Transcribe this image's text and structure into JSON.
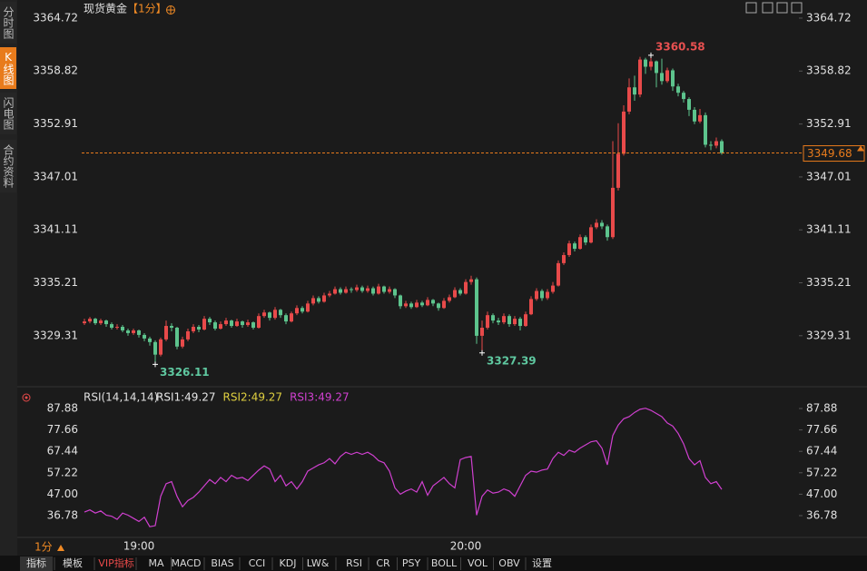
{
  "title": "现货黄金",
  "period": "【1分】",
  "sidebar_tabs": [
    "分时图",
    "K线图",
    "闪电图",
    "合约资料"
  ],
  "period_selector": "1分",
  "toolbar_tabs": [
    "指标",
    "模板",
    "VIP指标",
    "MA",
    "MACD",
    "BIAS",
    "CCI",
    "KDJ",
    "LW&",
    "RSI",
    "CR",
    "PSY",
    "BOLL",
    "VOL",
    "OBV",
    "设置"
  ],
  "chart_data": [
    {
      "type": "candlestick",
      "up_color": "#e84a4a",
      "down_color": "#5dc48d",
      "last_price": 3349.68,
      "ylim": [
        3324.23,
        3365.93
      ],
      "yticks": [
        3364.72,
        3358.82,
        3352.91,
        3347.01,
        3341.11,
        3335.21,
        3329.31
      ],
      "categories": [
        null,
        null,
        null,
        null,
        null,
        null,
        null,
        null,
        null,
        null,
        "19:00",
        null,
        null,
        null,
        null,
        null,
        null,
        null,
        null,
        null,
        null,
        null,
        null,
        null,
        null,
        null,
        null,
        null,
        null,
        null,
        null,
        null,
        null,
        null,
        null,
        null,
        null,
        null,
        null,
        null,
        null,
        null,
        null,
        null,
        null,
        null,
        null,
        null,
        null,
        null,
        null,
        null,
        null,
        null,
        null,
        null,
        null,
        null,
        null,
        null,
        null,
        null,
        null,
        null,
        null,
        null,
        null,
        null,
        null,
        null,
        "20:00",
        null,
        null,
        null,
        null,
        null,
        null,
        null,
        null,
        null,
        null,
        null,
        null,
        null,
        null,
        null,
        null,
        null,
        null,
        null,
        null,
        null,
        null,
        null,
        null,
        null,
        null,
        null,
        null,
        null,
        null,
        null,
        null,
        null,
        null,
        null,
        null,
        null,
        null,
        null,
        null,
        null,
        null,
        null,
        null,
        null,
        null,
        null
      ],
      "open": [
        3330.7,
        3330.9,
        3331.2,
        3330.7,
        3331.0,
        3330.6,
        3330.2,
        3330.3,
        3329.9,
        3329.6,
        3329.9,
        3329.4,
        3329.0,
        3328.6,
        3327.2,
        3328.9,
        3330.4,
        3330.2,
        3328.1,
        3328.9,
        3329.8,
        3330.3,
        3330.0,
        3331.2,
        3330.8,
        3330.1,
        3330.6,
        3331.0,
        3330.4,
        3330.9,
        3330.5,
        3330.8,
        3330.2,
        3331.5,
        3331.9,
        3331.3,
        3332.2,
        3331.6,
        3330.9,
        3331.8,
        3332.4,
        3332.0,
        3332.9,
        3333.5,
        3333.1,
        3333.8,
        3334.0,
        3334.5,
        3334.1,
        3334.5,
        3334.4,
        3334.7,
        3334.3,
        3334.6,
        3334.0,
        3334.8,
        3334.2,
        3334.5,
        3333.8,
        3332.6,
        3332.9,
        3332.5,
        3333.0,
        3332.7,
        3333.3,
        3332.9,
        3332.4,
        3333.2,
        3333.6,
        3334.4,
        3334.0,
        3335.3,
        3335.6,
        3329.3,
        3330.2,
        3331.6,
        3331.0,
        3330.8,
        3331.5,
        3330.6,
        3331.2,
        3330.4,
        3331.7,
        3333.4,
        3334.3,
        3333.5,
        3334.2,
        3334.9,
        3337.4,
        3338.3,
        3339.6,
        3339.0,
        3340.3,
        3339.7,
        3341.4,
        3341.9,
        3341.5,
        3340.3,
        3345.8,
        3349.6,
        3354.3,
        3357.0,
        3356.2,
        3360.1,
        3359.3,
        3359.9,
        3358.6,
        3357.7,
        3358.9,
        3357.1,
        3356.4,
        3355.7,
        3354.5,
        3353.2,
        3353.9,
        3350.6,
        3350.5,
        3351.0
      ],
      "high": [
        3331.2,
        3331.4,
        3331.3,
        3331.2,
        3331.1,
        3330.8,
        3330.6,
        3330.5,
        3330.1,
        3330.1,
        3330.0,
        3329.6,
        3329.2,
        3328.8,
        3329.1,
        3331.0,
        3330.7,
        3330.3,
        3329.2,
        3330.1,
        3330.6,
        3330.5,
        3331.5,
        3331.4,
        3331.0,
        3330.9,
        3331.3,
        3331.1,
        3331.2,
        3331.0,
        3331.1,
        3330.9,
        3331.8,
        3332.2,
        3332.0,
        3332.5,
        3332.3,
        3331.8,
        3332.0,
        3332.7,
        3332.6,
        3333.2,
        3333.8,
        3333.7,
        3334.1,
        3334.3,
        3334.8,
        3334.7,
        3334.8,
        3334.7,
        3335.0,
        3334.9,
        3334.9,
        3334.8,
        3335.1,
        3334.9,
        3334.8,
        3334.6,
        3333.9,
        3333.2,
        3333.1,
        3333.3,
        3333.2,
        3333.6,
        3333.4,
        3333.0,
        3333.5,
        3333.9,
        3334.7,
        3334.6,
        3335.6,
        3336.0,
        3335.8,
        3331.0,
        3332.0,
        3331.8,
        3331.3,
        3331.8,
        3331.7,
        3331.5,
        3331.4,
        3332.0,
        3333.7,
        3334.6,
        3334.5,
        3334.5,
        3335.3,
        3337.7,
        3338.6,
        3339.9,
        3339.8,
        3340.6,
        3340.5,
        3341.7,
        3342.3,
        3342.2,
        3341.7,
        3351.0,
        3353.0,
        3355.0,
        3358.0,
        3358.3,
        3360.4,
        3360.3,
        3360.58,
        3360.0,
        3360.2,
        3359.2,
        3359.1,
        3357.4,
        3356.6,
        3355.9,
        3354.8,
        3354.6,
        3354.2,
        3351.0,
        3351.4,
        3351.2
      ],
      "low": [
        3330.5,
        3330.7,
        3330.5,
        3330.5,
        3330.3,
        3330.0,
        3330.0,
        3329.7,
        3329.3,
        3329.4,
        3329.1,
        3328.7,
        3328.2,
        3326.11,
        3327.0,
        3328.7,
        3329.8,
        3327.8,
        3327.9,
        3328.7,
        3329.6,
        3329.7,
        3329.9,
        3330.5,
        3329.9,
        3330.0,
        3330.4,
        3330.2,
        3330.3,
        3330.2,
        3330.3,
        3330.0,
        3330.1,
        3331.3,
        3331.0,
        3331.1,
        3331.3,
        3330.6,
        3330.8,
        3331.6,
        3331.8,
        3331.9,
        3332.7,
        3332.9,
        3333.0,
        3333.6,
        3333.9,
        3333.9,
        3334.0,
        3334.1,
        3334.2,
        3334.1,
        3334.1,
        3333.8,
        3333.9,
        3334.0,
        3334.0,
        3333.5,
        3332.3,
        3332.4,
        3332.3,
        3332.4,
        3332.5,
        3332.6,
        3332.6,
        3332.1,
        3332.3,
        3333.0,
        3333.5,
        3333.8,
        3333.9,
        3335.0,
        3328.4,
        3327.39,
        3330.0,
        3330.7,
        3330.5,
        3330.6,
        3330.3,
        3330.4,
        3329.9,
        3330.3,
        3331.6,
        3333.2,
        3333.2,
        3333.3,
        3334.0,
        3334.8,
        3337.2,
        3338.1,
        3338.7,
        3338.9,
        3339.4,
        3339.6,
        3341.2,
        3341.2,
        3339.9,
        3340.1,
        3345.5,
        3349.4,
        3354.0,
        3355.5,
        3355.9,
        3358.5,
        3358.9,
        3357.0,
        3357.3,
        3357.5,
        3356.6,
        3356.0,
        3355.3,
        3353.8,
        3352.9,
        3353.0,
        3350.3,
        3350.0,
        3350.2,
        3349.5
      ],
      "close": [
        3330.9,
        3331.2,
        3330.7,
        3331.0,
        3330.6,
        3330.2,
        3330.3,
        3329.9,
        3329.6,
        3329.9,
        3329.4,
        3329.0,
        3328.6,
        3327.2,
        3328.9,
        3330.4,
        3330.2,
        3328.1,
        3328.9,
        3329.8,
        3330.3,
        3330.0,
        3331.2,
        3330.8,
        3330.1,
        3330.6,
        3331.0,
        3330.4,
        3330.9,
        3330.5,
        3330.8,
        3330.2,
        3331.5,
        3331.9,
        3331.3,
        3332.2,
        3331.6,
        3330.9,
        3331.8,
        3332.4,
        3332.0,
        3332.9,
        3333.5,
        3333.1,
        3333.8,
        3334.0,
        3334.5,
        3334.1,
        3334.5,
        3334.4,
        3334.7,
        3334.3,
        3334.6,
        3334.0,
        3334.8,
        3334.2,
        3334.5,
        3333.8,
        3332.6,
        3332.9,
        3332.5,
        3333.0,
        3332.7,
        3333.3,
        3332.9,
        3332.4,
        3333.2,
        3333.6,
        3334.4,
        3334.0,
        3335.3,
        3335.6,
        3329.3,
        3330.2,
        3331.6,
        3331.0,
        3330.8,
        3331.5,
        3330.6,
        3331.2,
        3330.4,
        3331.7,
        3333.4,
        3334.3,
        3333.5,
        3334.2,
        3334.9,
        3337.4,
        3338.3,
        3339.6,
        3339.0,
        3340.3,
        3339.7,
        3341.4,
        3341.9,
        3341.5,
        3340.3,
        3345.8,
        3349.6,
        3354.3,
        3357.0,
        3356.2,
        3360.1,
        3359.3,
        3359.9,
        3358.6,
        3357.7,
        3358.9,
        3357.1,
        3356.4,
        3355.7,
        3354.5,
        3353.2,
        3353.9,
        3350.6,
        3350.5,
        3351.0,
        3349.68
      ]
    },
    {
      "type": "line",
      "title": "RSI(14,14,14)",
      "ylim": [
        27.25,
        89.61
      ],
      "yticks": [
        87.88,
        77.66,
        67.44,
        57.22,
        {
          "value": 47,
          "label": "47.00"
        },
        36.78
      ],
      "indicator_labels": [
        {
          "text": "RSI1:49.27",
          "color": "#e6e6e6"
        },
        {
          "text": "RSI2:49.27",
          "color": "#e0d040"
        }
      ],
      "series": [
        {
          "name": "RSI3:49.27",
          "color": "#d040d0",
          "values": [
            38.5,
            39.5,
            38.0,
            39.0,
            37.0,
            36.5,
            35.0,
            38.0,
            37.0,
            35.5,
            34.0,
            36.0,
            31.5,
            32.0,
            46.0,
            52.0,
            53.0,
            46.0,
            41.0,
            44.0,
            45.5,
            48.0,
            51.0,
            54.0,
            52.0,
            55.0,
            53.0,
            56.0,
            54.5,
            55.0,
            53.5,
            56.0,
            58.5,
            60.5,
            59.0,
            53.0,
            56.0,
            51.0,
            53.0,
            49.5,
            53.0,
            58.0,
            59.5,
            61.0,
            62.0,
            64.0,
            61.5,
            65.0,
            67.0,
            66.0,
            67.0,
            66.0,
            67.0,
            65.5,
            63.0,
            62.0,
            58.0,
            50.0,
            47.0,
            48.5,
            49.5,
            48.0,
            53.0,
            46.5,
            51.0,
            53.0,
            55.0,
            52.0,
            50.0,
            63.5,
            64.5,
            65.0,
            37.0,
            46.0,
            49.0,
            47.5,
            48.0,
            49.5,
            48.5,
            46.0,
            51.0,
            56.0,
            58.0,
            57.5,
            58.5,
            59.0,
            64.0,
            67.0,
            65.5,
            68.0,
            67.0,
            69.0,
            70.5,
            72.0,
            72.5,
            69.0,
            61.0,
            75.0,
            80.0,
            83.0,
            84.0,
            86.0,
            87.5,
            88.0,
            87.0,
            85.5,
            84.0,
            81.0,
            79.5,
            76.0,
            71.0,
            64.0,
            61.0,
            63.0,
            55.0,
            52.0,
            53.0,
            49.27
          ]
        }
      ]
    }
  ]
}
